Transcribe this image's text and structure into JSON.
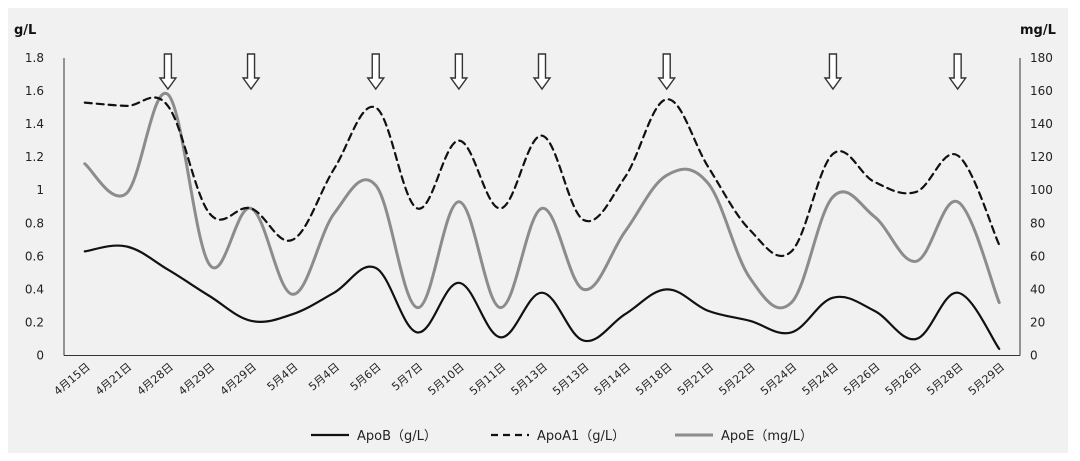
{
  "chart_data": {
    "type": "line",
    "title": "",
    "y_left_label": "g/L",
    "y_right_label": "mg/L",
    "ylim_left": [
      0,
      1.8
    ],
    "ylim_right": [
      0,
      180
    ],
    "y_left_ticks": [
      "0",
      "0.2",
      "0.4",
      "0.6",
      "0.8",
      "1",
      "1.2",
      "1.4",
      "1.6",
      "1.8"
    ],
    "y_right_ticks": [
      "0",
      "20",
      "40",
      "60",
      "80",
      "100",
      "120",
      "140",
      "160",
      "180"
    ],
    "categories": [
      "4月15日",
      "4月21日",
      "4月28日",
      "4月29日",
      "4月29日",
      "5月4日",
      "5月4日",
      "5月6日",
      "5月7日",
      "5月10日",
      "5月11日",
      "5月13日",
      "5月13日",
      "5月14日",
      "5月18日",
      "5月21日",
      "5月22日",
      "5月24日",
      "5月24日",
      "5月26日",
      "5月26日",
      "5月28日",
      "5月29日"
    ],
    "arrow_categories": [
      2,
      4,
      7,
      9,
      11,
      14,
      18,
      21
    ],
    "series": [
      {
        "name": "ApoB（g/L）",
        "axis": "left",
        "style": "solid",
        "color": "#111111",
        "values": [
          0.63,
          0.66,
          0.52,
          0.36,
          0.21,
          0.25,
          0.38,
          0.53,
          0.14,
          0.44,
          0.11,
          0.38,
          0.09,
          0.25,
          0.4,
          0.27,
          0.21,
          0.14,
          0.35,
          0.27,
          0.1,
          0.38,
          0.04
        ]
      },
      {
        "name": "ApoA1（g/L）",
        "axis": "left",
        "style": "dashed",
        "color": "#111111",
        "values": [
          1.53,
          1.51,
          1.51,
          0.86,
          0.89,
          0.7,
          1.13,
          1.5,
          0.89,
          1.3,
          0.89,
          1.33,
          0.82,
          1.08,
          1.55,
          1.14,
          0.76,
          0.63,
          1.22,
          1.05,
          0.99,
          1.21,
          0.67
        ]
      },
      {
        "name": "ApoE（mg/L）",
        "axis": "right",
        "style": "solid",
        "color": "#8c8c8c",
        "values": [
          116,
          98,
          158,
          55,
          89,
          37,
          86,
          103,
          29,
          93,
          29,
          89,
          40,
          75,
          109,
          104,
          47,
          32,
          96,
          84,
          57,
          93,
          32
        ]
      }
    ],
    "legend_position": "bottom-center",
    "grid": false
  }
}
